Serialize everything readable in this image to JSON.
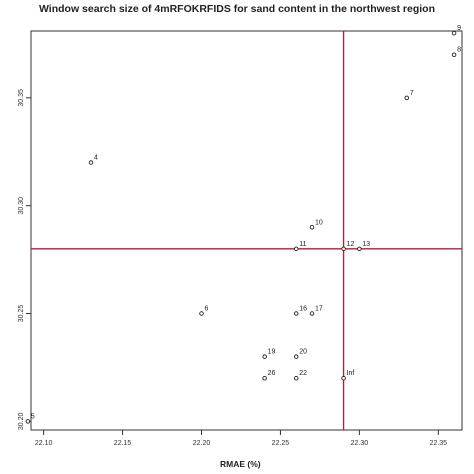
{
  "chart_data": {
    "type": "scatter",
    "title": "Window search size of 4mRFOKRFIDS for sand content in the northwest region",
    "xlabel": "RMAE (%)",
    "ylabel": "",
    "xlim": [
      22.092,
      22.365
    ],
    "ylim": [
      30.196,
      30.381
    ],
    "xticks": [
      22.1,
      22.15,
      22.2,
      22.25,
      22.3,
      22.35
    ],
    "yticks": [
      30.2,
      30.25,
      30.3,
      30.35
    ],
    "x_tick_labels": [
      "22.10",
      "22.15",
      "22.20",
      "22.25",
      "22.30",
      "22.35"
    ],
    "y_tick_labels": [
      "30.20",
      "30.25",
      "30.30",
      "30.35"
    ],
    "grid": false,
    "reference_lines": {
      "x": 22.29,
      "y": 30.28,
      "color": "#c0182c"
    },
    "points": [
      {
        "label": "5",
        "x": 22.09,
        "y": 30.2
      },
      {
        "label": "4",
        "x": 22.13,
        "y": 30.32
      },
      {
        "label": "6",
        "x": 22.2,
        "y": 30.25
      },
      {
        "label": "19",
        "x": 22.24,
        "y": 30.23
      },
      {
        "label": "26",
        "x": 22.24,
        "y": 30.22
      },
      {
        "label": "20",
        "x": 22.26,
        "y": 30.23
      },
      {
        "label": "22",
        "x": 22.26,
        "y": 30.22
      },
      {
        "label": "16",
        "x": 22.26,
        "y": 30.25
      },
      {
        "label": "17",
        "x": 22.27,
        "y": 30.25
      },
      {
        "label": "11",
        "x": 22.26,
        "y": 30.28
      },
      {
        "label": "10",
        "x": 22.27,
        "y": 30.29
      },
      {
        "label": "12",
        "x": 22.29,
        "y": 30.28
      },
      {
        "label": "13",
        "x": 22.3,
        "y": 30.28
      },
      {
        "label": "Inf",
        "x": 22.29,
        "y": 30.22
      },
      {
        "label": "7",
        "x": 22.33,
        "y": 30.35
      },
      {
        "label": "8",
        "x": 22.36,
        "y": 30.37
      },
      {
        "label": "9",
        "x": 22.36,
        "y": 30.38
      }
    ]
  }
}
